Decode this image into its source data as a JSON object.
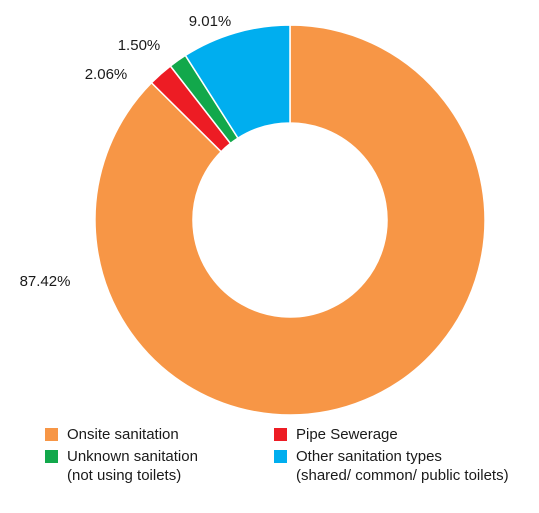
{
  "chart_data": {
    "type": "pie",
    "donut": true,
    "title": "",
    "categories": [
      "Onsite sanitation",
      "Pipe Sewerage",
      "Unknown sanitation (not using toilets)",
      "Other sanitation types (shared/ common/ public toilets)"
    ],
    "values": [
      87.42,
      2.06,
      1.5,
      9.01
    ],
    "value_labels": [
      "87.42%",
      "2.06%",
      "1.50%",
      "9.01%"
    ],
    "colors": [
      "#F79646",
      "#ED1C24",
      "#12A84B",
      "#00AEEF"
    ],
    "start": "12 o'clock",
    "direction": "clockwise",
    "legend_position": "bottom"
  },
  "legend": {
    "onsite": {
      "line1": "Onsite sanitation",
      "line2": ""
    },
    "pipe": {
      "line1": "Pipe Sewerage",
      "line2": ""
    },
    "unknown": {
      "line1": "Unknown sanitation",
      "line2": "(not using toilets)"
    },
    "other": {
      "line1": "Other sanitation types",
      "line2": "(shared/ common/ public toilets)"
    }
  }
}
